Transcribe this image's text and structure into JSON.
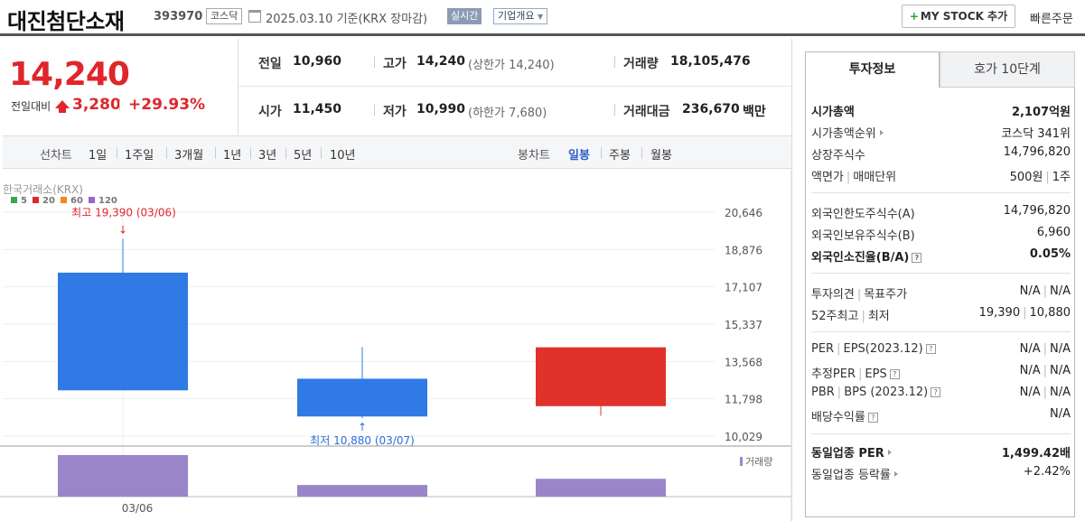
{
  "header": {
    "name": "대진첨단소재",
    "code": "393970",
    "market_tag": "코스닥",
    "date": "2025.03.10  기준(KRX 장마감)",
    "realtime": "실시간",
    "corp_info": "기업개요",
    "mystock": "MY STOCK 추가",
    "quick_order": "빠른주문"
  },
  "price": {
    "current": "14,240",
    "change_label": "전일대비",
    "change_value": "3,280",
    "change_pct": "+29.93%",
    "prev_label": "전일",
    "prev": "10,960",
    "high_label": "고가",
    "high": "14,240",
    "upper_limit": "(상한가 14,240)",
    "volume_label": "거래량",
    "volume": "18,105,476",
    "open_label": "시가",
    "open": "11,450",
    "low_label": "저가",
    "low": "10,990",
    "lower_limit": "(하한가 7,680)",
    "amount_label": "거래대금",
    "amount": "236,670",
    "amount_unit": "백만"
  },
  "toolbar": {
    "line_label": "선차트",
    "line_periods": [
      "1일",
      "1주일",
      "3개월",
      "1년",
      "3년",
      "5년",
      "10년"
    ],
    "candle_label": "봉차트",
    "candle_periods": [
      "일봉",
      "주봉",
      "월봉"
    ],
    "active_candle": "일봉"
  },
  "chart_data": {
    "type": "candlestick",
    "source": "한국거래소(KRX)",
    "ma_legend": [
      {
        "name": "5",
        "color": "#3aa84a"
      },
      {
        "name": "20",
        "color": "#e0262a"
      },
      {
        "name": "60",
        "color": "#f08a1c"
      },
      {
        "name": "120",
        "color": "#9966cc"
      }
    ],
    "y_ticks": [
      20646,
      18876,
      17107,
      15337,
      13568,
      11798,
      10029
    ],
    "ylim": [
      10029,
      20646
    ],
    "x_label": "03/06",
    "max_annotation": "최고 19,390 (03/06)",
    "min_annotation": "최저 10,880 (03/07)",
    "volume_label": "거래량",
    "candles": [
      {
        "date": "03/06",
        "open": 17780,
        "close": 12200,
        "high": 19390,
        "low": 12200,
        "color": "#2f7ae5",
        "volume": 1.0
      },
      {
        "date": "03/07",
        "open": 12750,
        "close": 10960,
        "high": 14250,
        "low": 10880,
        "color": "#2f7ae5",
        "volume": 0.28
      },
      {
        "date": "03/10",
        "open": 11450,
        "close": 14240,
        "high": 14240,
        "low": 10990,
        "color": "#e0312b",
        "volume": 0.43
      }
    ]
  },
  "invest": {
    "tab_active": "투자정보",
    "tab_other": "호가 10단계",
    "market_cap_label": "시가총액",
    "market_cap": "2,107억원",
    "rank_label": "시가총액순위",
    "rank": "코스닥 341위",
    "shares_label": "상장주식수",
    "shares": "14,796,820",
    "face_label": "액면가",
    "unit_label": "매매단위",
    "face": "500원",
    "unit": "1주",
    "foreign_limit_label": "외국인한도주식수(A)",
    "foreign_limit": "14,796,820",
    "foreign_hold_label": "외국인보유주식수(B)",
    "foreign_hold": "6,960",
    "foreign_ratio_label": "외국인소진율(B/A)",
    "foreign_ratio": "0.05%",
    "opinion_label": "투자의견",
    "target_label": "목표주가",
    "opinion": "N/A",
    "target": "N/A",
    "w52_label": "52주최고",
    "w52_low_label": "최저",
    "w52_high": "19,390",
    "w52_low": "10,880",
    "per_label": "PER",
    "eps_label": "EPS(2023.12)",
    "per": "N/A",
    "eps": "N/A",
    "eper_label": "추정PER",
    "eeps_label": "EPS",
    "eper": "N/A",
    "eeps": "N/A",
    "pbr_label": "PBR",
    "bps_label": "BPS (2023.12)",
    "pbr": "N/A",
    "bps": "N/A",
    "div_label": "배당수익률",
    "div": "N/A",
    "ind_per_label": "동일업종 PER",
    "ind_per": "1,499.42배",
    "ind_rate_label": "동일업종 등락률",
    "ind_rate": "+2.42%"
  }
}
